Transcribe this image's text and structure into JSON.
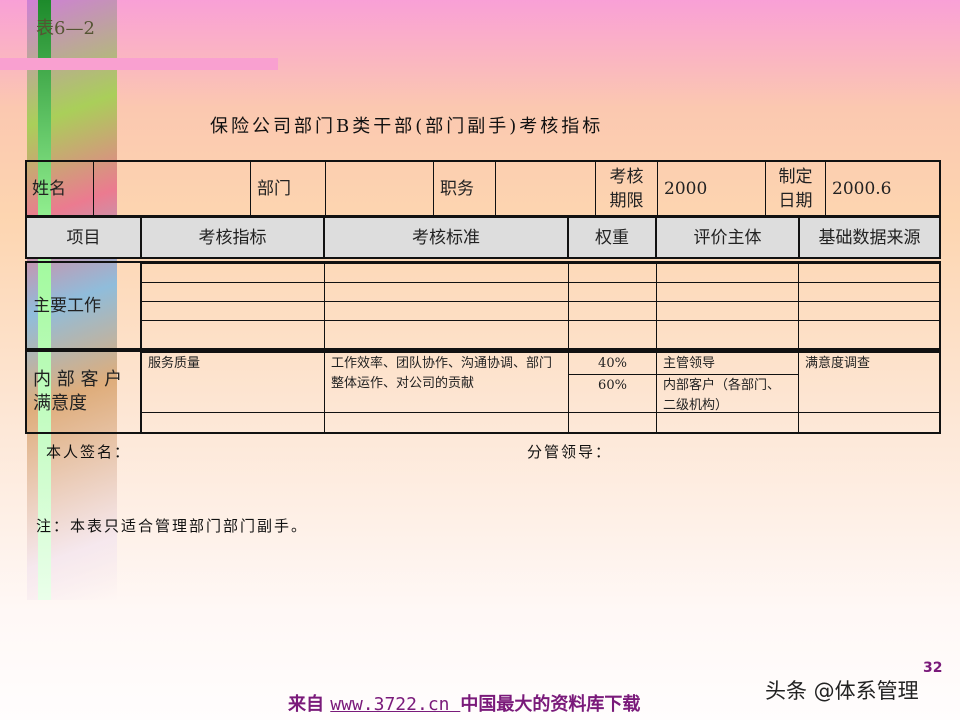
{
  "table_ref": "表6—2",
  "title": "保险公司部门B类干部(部门副手)考核指标",
  "info_row": {
    "name_label": "姓名",
    "name_value": "",
    "dept_label": "部门",
    "dept_value": "",
    "position_label": "职务",
    "position_value": "",
    "period_label": "考核期限",
    "period_value": "2000",
    "date_label": "制定日期",
    "date_value": "2000.6"
  },
  "headers": [
    "项目",
    "考核指标",
    "考核标准",
    "权重",
    "评价主体",
    "基础数据来源"
  ],
  "sections": {
    "main_work": {
      "label": "主要工作"
    },
    "internal": {
      "label": "内 部 客 户 满意度",
      "indicator": "服务质量",
      "standard": "工作效率、团队协作、沟通协调、部门整体运作、对公司的贡献",
      "weights": [
        "40%",
        "60%"
      ],
      "evaluators": [
        "主管领导",
        "内部客户（各部门、二级机构）"
      ],
      "data_source": "满意度调查"
    }
  },
  "signature": {
    "self": "本人签名：",
    "leader": "分管领导："
  },
  "note": "注：本表只适合管理部门部门副手。",
  "footer": {
    "prefix": "来自 ",
    "url": "www.3722.cn ",
    "suffix": "中国最大的资料库下载"
  },
  "watermark": "头条 @体系管理",
  "page_number": "32"
}
